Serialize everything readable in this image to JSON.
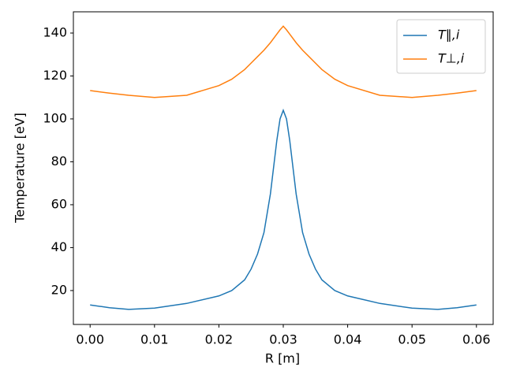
{
  "chart_data": {
    "type": "line",
    "x_label": "R [m]",
    "y_label": "Temperature [eV]",
    "x": [
      0,
      0.003,
      0.006,
      0.01,
      0.015,
      0.02,
      0.022,
      0.024,
      0.025,
      0.026,
      0.027,
      0.028,
      0.029,
      0.0295,
      0.03,
      0.0305,
      0.031,
      0.032,
      0.033,
      0.034,
      0.035,
      0.036,
      0.038,
      0.04,
      0.045,
      0.05,
      0.054,
      0.057,
      0.06
    ],
    "series": [
      {
        "name": "T∥,i",
        "color": "#1f77b4",
        "values": [
          13.3,
          12,
          11.2,
          11.8,
          14,
          17.5,
          20,
          25,
          30,
          37,
          47,
          65,
          90,
          100,
          104,
          100,
          90,
          65,
          47,
          37,
          30,
          25,
          20,
          17.5,
          14,
          11.8,
          11.2,
          12,
          13.3
        ]
      },
      {
        "name": "T⊥,i",
        "color": "#ff7f0e",
        "values": [
          113.2,
          112,
          111,
          110,
          111,
          115.5,
          118.5,
          123,
          126,
          129,
          132,
          135.5,
          139.5,
          141.5,
          143.2,
          141.5,
          139.5,
          135.5,
          132,
          129,
          126,
          123,
          118.5,
          115.5,
          111,
          110,
          111,
          112,
          113.2
        ]
      }
    ],
    "xlim": [
      -0.0026,
      0.0626
    ],
    "ylim": [
      4.2,
      149.9
    ],
    "xticks": [
      {
        "value": 0,
        "label": "0.00"
      },
      {
        "value": 0.01,
        "label": "0.01"
      },
      {
        "value": 0.02,
        "label": "0.02"
      },
      {
        "value": 0.03,
        "label": "0.03"
      },
      {
        "value": 0.04,
        "label": "0.04"
      },
      {
        "value": 0.05,
        "label": "0.05"
      },
      {
        "value": 0.06,
        "label": "0.06"
      }
    ],
    "yticks": [
      20,
      40,
      60,
      80,
      100,
      120,
      140
    ],
    "legend": "upper-right"
  }
}
